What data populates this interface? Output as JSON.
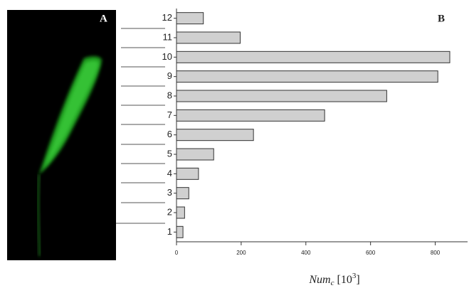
{
  "chart_data": {
    "type": "bar",
    "orientation": "horizontal",
    "panels": [
      "A",
      "B"
    ],
    "categories": [
      "1",
      "2",
      "3",
      "4",
      "5",
      "6",
      "7",
      "8",
      "9",
      "10",
      "11",
      "12"
    ],
    "values": [
      20,
      25,
      38,
      68,
      115,
      238,
      458,
      650,
      808,
      845,
      197,
      83
    ],
    "color": "#d0d0d0",
    "xlim": [
      0,
      900
    ],
    "xticks": [
      0,
      200,
      400,
      600,
      800
    ],
    "x_label_parts": [
      "Num",
      "c",
      " [10",
      "3",
      "]"
    ]
  }
}
